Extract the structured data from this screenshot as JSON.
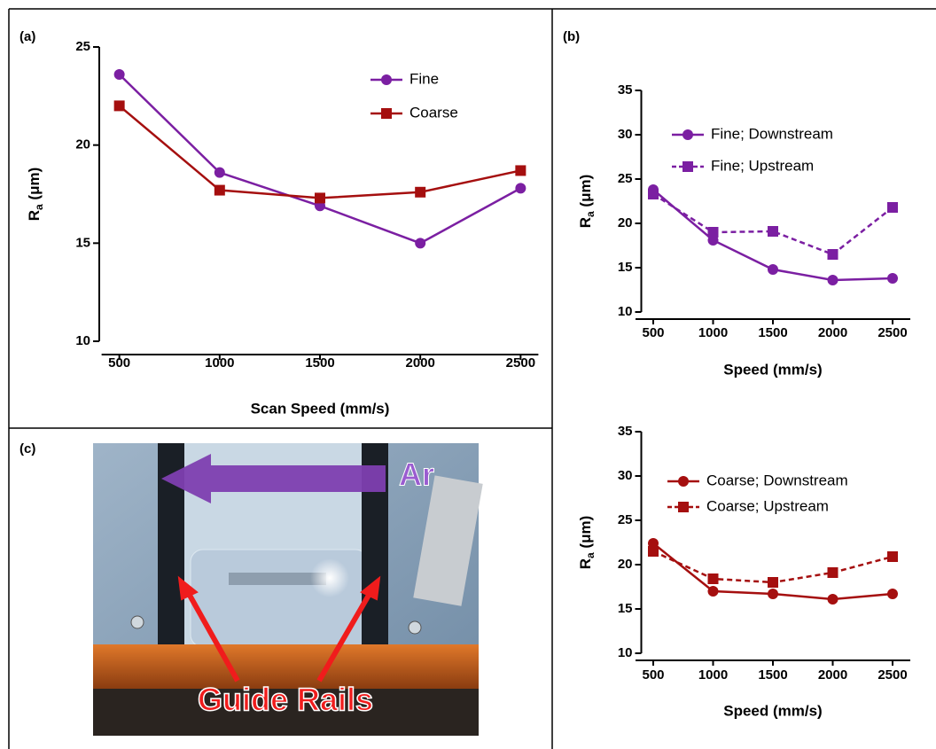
{
  "panel_labels": [
    "(a)",
    "(b)",
    "(c)"
  ],
  "photo": {
    "arrow_label": "Ar",
    "rail_label": "Guide Rails"
  },
  "chart_data": [
    {
      "type": "line",
      "xlabel": "Scan Speed (mm/s)",
      "ylabel": [
        "R",
        "a",
        " (μm)"
      ],
      "x": [
        500,
        1000,
        1500,
        2000,
        2500
      ],
      "xlim": [
        400,
        2600
      ],
      "xticks": [
        500,
        1000,
        1500,
        2000,
        2500
      ],
      "ylim": [
        10,
        25
      ],
      "yticks": [
        10,
        15,
        20,
        25
      ],
      "legend": "upper right",
      "series": [
        {
          "name": "Fine",
          "color": "#7b1fa2",
          "marker": "circle",
          "style": "solid",
          "values": [
            23.6,
            18.6,
            16.9,
            15.0,
            17.8
          ]
        },
        {
          "name": "Coarse",
          "color": "#a50f0f",
          "marker": "square",
          "style": "solid",
          "values": [
            22.0,
            17.7,
            17.3,
            17.6,
            18.7
          ]
        }
      ]
    },
    {
      "type": "line",
      "xlabel": "Speed (mm/s)",
      "ylabel": [
        "R",
        "a",
        " (μm)"
      ],
      "x": [
        500,
        1000,
        1500,
        2000,
        2500
      ],
      "xlim": [
        400,
        2600
      ],
      "xticks": [
        500,
        1000,
        1500,
        2000,
        2500
      ],
      "ylim": [
        10,
        35
      ],
      "yticks": [
        10,
        15,
        20,
        25,
        30,
        35
      ],
      "legend": "upper right",
      "series": [
        {
          "name": "Fine; Downstream",
          "color": "#7b1fa2",
          "marker": "circle",
          "style": "solid",
          "values": [
            23.8,
            18.1,
            14.8,
            13.6,
            13.8
          ]
        },
        {
          "name": "Fine; Upstream",
          "color": "#7b1fa2",
          "marker": "square",
          "style": "dashed",
          "values": [
            23.3,
            19.0,
            19.1,
            16.5,
            21.8
          ]
        }
      ]
    },
    {
      "type": "line",
      "xlabel": "Speed (mm/s)",
      "ylabel": [
        "R",
        "a",
        " (μm)"
      ],
      "x": [
        500,
        1000,
        1500,
        2000,
        2500
      ],
      "xlim": [
        400,
        2600
      ],
      "xticks": [
        500,
        1000,
        1500,
        2000,
        2500
      ],
      "ylim": [
        10,
        35
      ],
      "yticks": [
        10,
        15,
        20,
        25,
        30,
        35
      ],
      "legend": "upper right",
      "series": [
        {
          "name": "Coarse; Downstream",
          "color": "#a50f0f",
          "marker": "circle",
          "style": "solid",
          "values": [
            22.4,
            17.0,
            16.7,
            16.1,
            16.7
          ]
        },
        {
          "name": "Coarse; Upstream",
          "color": "#a50f0f",
          "marker": "square",
          "style": "dashed",
          "values": [
            21.5,
            18.4,
            18.0,
            19.1,
            20.9
          ]
        }
      ]
    }
  ]
}
